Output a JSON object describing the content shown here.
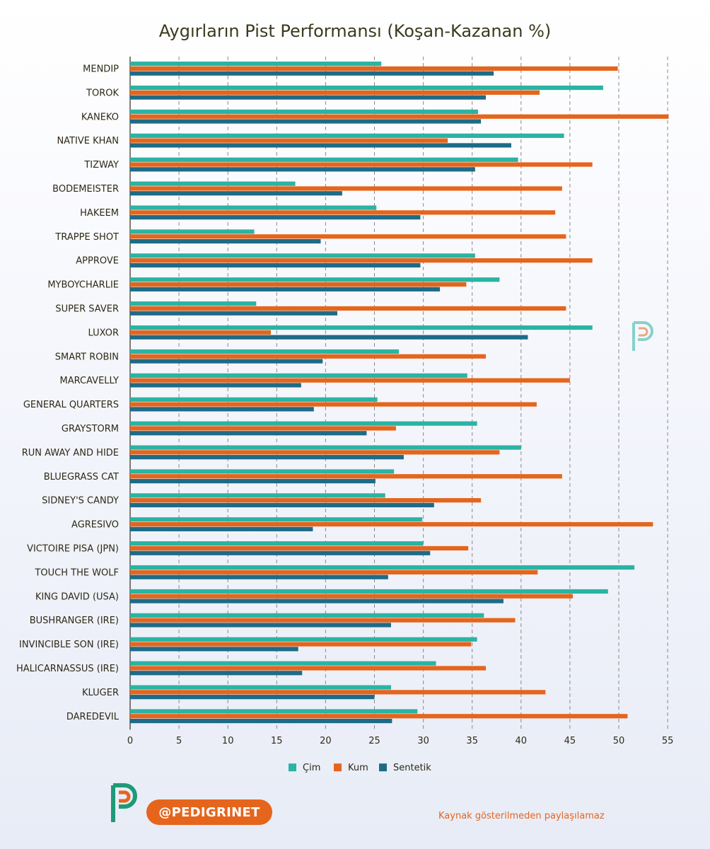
{
  "chart_data": {
    "type": "bar",
    "orientation": "horizontal",
    "title": "Aygırların Pist Performansı (Koşan-Kazanan %)",
    "categories": [
      "MENDIP",
      "TOROK",
      "KANEKO",
      "NATIVE KHAN",
      "TIZWAY",
      "BODEMEISTER",
      "HAKEEM",
      "TRAPPE SHOT",
      "APPROVE",
      "MYBOYCHARLIE",
      "SUPER SAVER",
      "LUXOR",
      "SMART ROBIN",
      "MARCAVELLY",
      "GENERAL QUARTERS",
      "GRAYSTORM",
      "RUN AWAY AND HIDE",
      "BLUEGRASS CAT",
      "SIDNEY'S CANDY",
      "AGRESIVO",
      "VICTOIRE PISA (JPN)",
      "TOUCH THE WOLF",
      "KING DAVID (USA)",
      "BUSHRANGER (IRE)",
      "INVINCIBLE SON (IRE)",
      "HALICARNASSUS (IRE)",
      "KLUGER",
      "DAREDEVIL"
    ],
    "series": [
      {
        "name": "Çim",
        "color": "#2bb3a3",
        "values": [
          25.7,
          48.4,
          35.6,
          44.4,
          39.7,
          16.9,
          25.2,
          12.7,
          35.3,
          37.8,
          12.9,
          47.3,
          27.5,
          34.5,
          25.3,
          35.5,
          40.0,
          27.0,
          26.1,
          29.9,
          30.0,
          51.6,
          48.9,
          36.2,
          35.5,
          31.3,
          26.7,
          29.4
        ]
      },
      {
        "name": "Kum",
        "color": "#e5651c",
        "values": [
          49.9,
          41.9,
          55.1,
          32.5,
          47.3,
          44.2,
          43.5,
          44.6,
          47.3,
          34.4,
          44.6,
          14.4,
          36.4,
          45.0,
          41.6,
          27.2,
          37.8,
          44.2,
          35.9,
          53.5,
          34.6,
          41.7,
          45.3,
          39.4,
          34.9,
          36.4,
          42.5,
          50.9
        ]
      },
      {
        "name": "Sentetik",
        "color": "#1d6b88",
        "values": [
          37.2,
          36.4,
          35.9,
          39.0,
          35.3,
          21.7,
          29.7,
          19.5,
          29.7,
          31.7,
          21.2,
          40.7,
          19.7,
          17.5,
          18.8,
          24.2,
          28.0,
          25.1,
          31.1,
          18.7,
          30.7,
          26.4,
          38.2,
          26.7,
          17.2,
          17.6,
          25.0,
          26.8
        ]
      }
    ],
    "xlim": [
      0,
      56
    ],
    "xticks": [
      0,
      5,
      10,
      15,
      20,
      25,
      30,
      35,
      40,
      45,
      50,
      55
    ],
    "grid": "vertical dashed",
    "legend_position": "bottom"
  },
  "footer": {
    "handle": "@PEDIGRINET",
    "source_note": "Kaynak gösterilmeden paylaşılamaz"
  },
  "logo": {
    "name": "pedigrinet-logo"
  }
}
